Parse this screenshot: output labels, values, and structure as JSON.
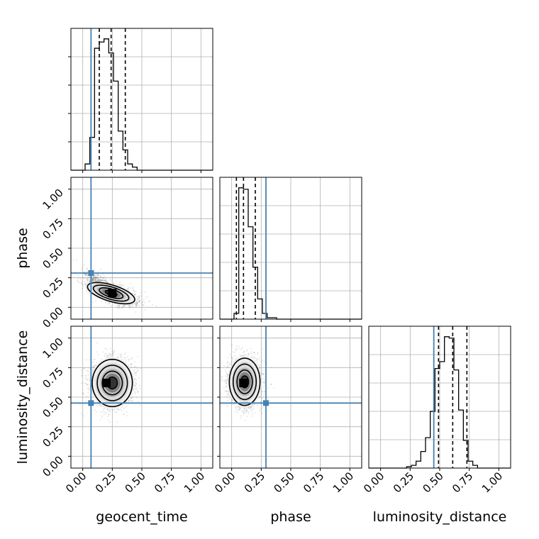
{
  "chart_data": {
    "type": "corner",
    "parameters": [
      "geocent_time",
      "phase",
      "luminosity_distance"
    ],
    "xlabels": [
      "geocent_time",
      "phase",
      "luminosity_distance"
    ],
    "ylabels": [
      "",
      "phase",
      "luminosity_distance"
    ],
    "range": [
      -0.1,
      1.1
    ],
    "tick_values": [
      0.0,
      0.25,
      0.5,
      0.75,
      1.0
    ],
    "tick_labels": [
      "0.00",
      "0.25",
      "0.50",
      "0.75",
      "1.00"
    ],
    "truths": [
      0.07,
      0.29,
      0.45
    ],
    "truth_color": "#4682b4",
    "grid": true,
    "histograms": [
      {
        "parameter": "geocent_time",
        "bin_edges": [
          -0.1,
          -0.06,
          -0.02,
          0.02,
          0.06,
          0.1,
          0.14,
          0.18,
          0.22,
          0.26,
          0.3,
          0.34,
          0.38,
          0.42,
          0.46,
          0.5,
          0.54,
          0.58,
          0.62,
          0.66,
          0.7,
          0.74,
          0.78,
          0.82,
          0.86,
          0.9,
          0.94,
          0.98,
          1.02,
          1.06,
          1.1
        ],
        "counts": [
          0,
          0,
          0,
          4,
          21,
          78,
          82,
          84,
          75,
          57,
          25,
          13,
          4,
          2,
          0,
          0,
          0,
          0,
          0,
          0,
          0,
          0,
          0,
          0,
          0,
          0,
          0,
          0,
          0,
          0
        ],
        "quantiles": [
          0.14,
          0.24,
          0.36
        ]
      },
      {
        "parameter": "phase",
        "bin_edges": [
          -0.1,
          -0.06,
          -0.02,
          0.02,
          0.06,
          0.1,
          0.14,
          0.18,
          0.22,
          0.26,
          0.3,
          0.34,
          0.38,
          0.42,
          0.46,
          0.5,
          0.54,
          0.58,
          0.62,
          0.66,
          0.7,
          0.74,
          0.78,
          0.82,
          0.86,
          0.9,
          0.94,
          0.98,
          1.02,
          1.06,
          1.1
        ],
        "counts": [
          0,
          0,
          0,
          4,
          91,
          90,
          64,
          36,
          14,
          4,
          1,
          1,
          0,
          0,
          0,
          0,
          0,
          0,
          0,
          0,
          0,
          0,
          0,
          0,
          0,
          0,
          0,
          0,
          0,
          0
        ],
        "quantiles": [
          0.04,
          0.1,
          0.2
        ]
      },
      {
        "parameter": "luminosity_distance",
        "bin_edges": [
          -0.1,
          -0.06,
          -0.02,
          0.02,
          0.06,
          0.1,
          0.14,
          0.18,
          0.22,
          0.26,
          0.3,
          0.34,
          0.38,
          0.42,
          0.46,
          0.5,
          0.54,
          0.58,
          0.62,
          0.66,
          0.7,
          0.74,
          0.78,
          0.82,
          0.86,
          0.9,
          0.94,
          0.98,
          1.02,
          1.06,
          1.1
        ],
        "counts": [
          0,
          0,
          0,
          0,
          0,
          0,
          0,
          0,
          1,
          2,
          5,
          12,
          22,
          41,
          72,
          77,
          95,
          94,
          71,
          42,
          20,
          5,
          2,
          0,
          0,
          0,
          0,
          0,
          0,
          0
        ],
        "quantiles": [
          0.49,
          0.61,
          0.73
        ]
      }
    ],
    "joint_densities": [
      {
        "x": "geocent_time",
        "y": "phase",
        "mean": [
          0.24,
          0.12
        ],
        "std": [
          0.08,
          0.045
        ],
        "correlation": -0.6,
        "peak": [
          0.25,
          0.12
        ]
      },
      {
        "x": "geocent_time",
        "y": "luminosity_distance",
        "mean": [
          0.25,
          0.62
        ],
        "std": [
          0.085,
          0.1
        ],
        "correlation": 0.0,
        "peak": [
          0.2,
          0.62
        ]
      },
      {
        "x": "phase",
        "y": "luminosity_distance",
        "mean": [
          0.11,
          0.63
        ],
        "std": [
          0.065,
          0.1
        ],
        "correlation": 0.0,
        "peak": [
          0.1,
          0.62
        ]
      }
    ],
    "contour_levels_sigma": [
      0.5,
      1.0,
      1.5,
      2.0
    ]
  }
}
